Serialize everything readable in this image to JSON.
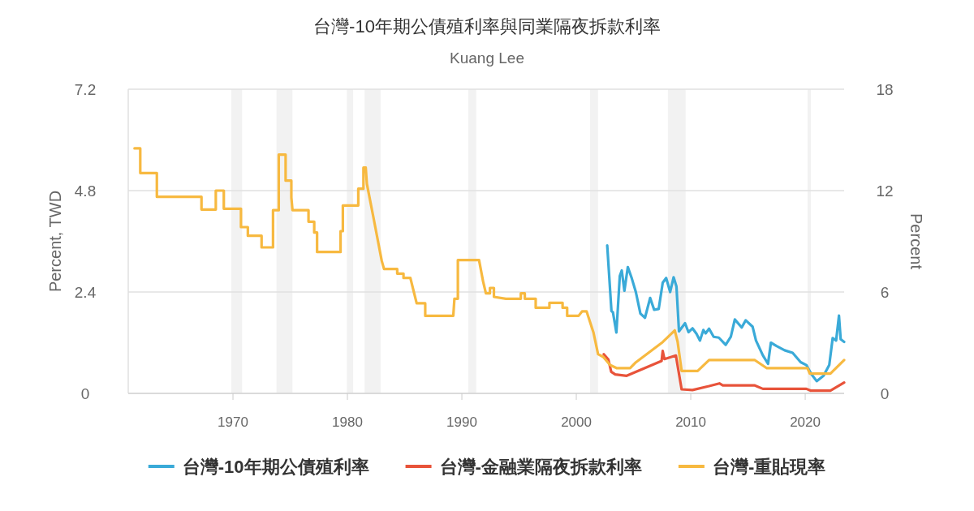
{
  "chart_data": {
    "type": "line",
    "title": "台灣-10年期公債殖利率與同業隔夜拆款利率",
    "subtitle": "Kuang Lee",
    "ylabel": "Percent, TWD",
    "y2label": "Percent",
    "xlim": [
      1960.85,
      2023.4
    ],
    "xticks": [
      1970,
      1980,
      1990,
      2000,
      2010,
      2020
    ],
    "ylim": [
      0,
      7.2
    ],
    "yticks": [
      0,
      2.4,
      4.8,
      7.2
    ],
    "y2lim": [
      0,
      18
    ],
    "y2ticks": [
      0,
      6,
      12,
      18
    ],
    "grid": "y",
    "legend": "bottom",
    "line_style": "solid",
    "bands": [
      {
        "axis": "x",
        "from": 1969.86,
        "to": 1970.8,
        "color": "#f2f2f2"
      },
      {
        "axis": "x",
        "from": 1973.8,
        "to": 1975.2,
        "color": "#f2f2f2"
      },
      {
        "axis": "x",
        "from": 1979.95,
        "to": 1980.5,
        "color": "#f2f2f2"
      },
      {
        "axis": "x",
        "from": 1981.5,
        "to": 1982.9,
        "color": "#f2f2f2"
      },
      {
        "axis": "x",
        "from": 1990.55,
        "to": 1991.25,
        "color": "#f2f2f2"
      },
      {
        "axis": "x",
        "from": 2001.2,
        "to": 2001.9,
        "color": "#f2f2f2"
      },
      {
        "axis": "x",
        "from": 2008.0,
        "to": 2009.55,
        "color": "#f2f2f2"
      },
      {
        "axis": "x",
        "from": 2020.2,
        "to": 2020.5,
        "color": "#f2f2f2"
      }
    ],
    "series": [
      {
        "name": "台灣-10年期公債殖利率",
        "color": "#3aaad8",
        "x": [
          2002.7,
          2003.07,
          2003.2,
          2003.5,
          2003.8,
          2003.97,
          2004.2,
          2004.5,
          2004.85,
          2005.2,
          2005.6,
          2006.0,
          2006.45,
          2006.8,
          2007.2,
          2007.55,
          2007.85,
          2008.2,
          2008.5,
          2008.75,
          2008.97,
          2009.5,
          2009.8,
          2010.15,
          2010.5,
          2010.8,
          2011.1,
          2011.3,
          2011.6,
          2012.0,
          2012.45,
          2013.05,
          2013.5,
          2013.85,
          2014.45,
          2014.8,
          2015.4,
          2015.7,
          2016.3,
          2016.75,
          2017.0,
          2017.5,
          2018.2,
          2018.9,
          2019.6,
          2020.1,
          2020.55,
          2021.0,
          2021.6,
          2022.1,
          2022.4,
          2022.7,
          2022.95,
          2023.1,
          2023.4
        ],
        "values": [
          3.5,
          1.95,
          1.92,
          1.44,
          2.78,
          2.91,
          2.43,
          2.99,
          2.72,
          2.4,
          1.89,
          1.79,
          2.26,
          1.98,
          2.0,
          2.62,
          2.73,
          2.4,
          2.75,
          2.53,
          1.47,
          1.66,
          1.45,
          1.54,
          1.41,
          1.25,
          1.5,
          1.42,
          1.53,
          1.34,
          1.32,
          1.15,
          1.34,
          1.75,
          1.56,
          1.73,
          1.58,
          1.25,
          0.9,
          0.7,
          1.2,
          1.12,
          1.02,
          0.96,
          0.74,
          0.67,
          0.45,
          0.29,
          0.42,
          0.67,
          1.31,
          1.25,
          1.84,
          1.28,
          1.22
        ]
      },
      {
        "name": "台灣-金融業隔夜拆款利率",
        "color": "#e8533a",
        "axis": "y2",
        "x": [
          2002.4,
          2002.8,
          2003.05,
          2003.4,
          2004.4,
          2007.45,
          2007.55,
          2007.7,
          2008.7,
          2009.2,
          2010.15,
          2011.6,
          2012.5,
          2012.8,
          2015.6,
          2016.3,
          2020.1,
          2020.5,
          2022.2,
          2023.4
        ],
        "values": [
          2.32,
          2.0,
          1.28,
          1.12,
          1.04,
          1.92,
          2.51,
          2.03,
          2.24,
          0.24,
          0.2,
          0.43,
          0.59,
          0.47,
          0.47,
          0.27,
          0.27,
          0.16,
          0.16,
          0.64
        ]
      },
      {
        "name": "台灣-重貼現率",
        "color": "#f7b940",
        "axis": "y2",
        "x": [
          1961.4,
          1961.9,
          1961.9,
          1963.35,
          1963.35,
          1967.25,
          1967.25,
          1968.5,
          1968.5,
          1969.2,
          1969.2,
          1970.7,
          1970.7,
          1971.3,
          1971.3,
          1972.5,
          1972.5,
          1973.5,
          1973.5,
          1974.0,
          1974.0,
          1974.6,
          1974.6,
          1975.1,
          1975.1,
          1975.2,
          1976.6,
          1976.6,
          1977.1,
          1977.1,
          1977.35,
          1977.35,
          1979.4,
          1979.4,
          1979.6,
          1979.6,
          1980.95,
          1980.95,
          1981.4,
          1981.4,
          1981.6,
          1981.7,
          1982.3,
          1983.0,
          1983.2,
          1984.35,
          1984.35,
          1984.9,
          1984.9,
          1985.5,
          1986.05,
          1986.8,
          1986.8,
          1989.25,
          1989.35,
          1989.65,
          1989.65,
          1991.5,
          1991.85,
          1992.1,
          1992.45,
          1992.45,
          1992.8,
          1992.8,
          1993.85,
          1995.15,
          1995.15,
          1995.5,
          1995.5,
          1996.45,
          1996.45,
          1997.65,
          1997.65,
          1998.8,
          1998.8,
          1999.2,
          1999.2,
          2000.2,
          2000.5,
          2000.9,
          2001.5,
          2001.9,
          2002.35,
          2002.95,
          2003.55,
          2004.7,
          2005.2,
          2007.55,
          2008.6,
          2008.85,
          2009.2,
          2010.6,
          2011.6,
          2015.6,
          2016.65,
          2020.2,
          2020.4,
          2022.2,
          2023.4
        ],
        "values": [
          14.5,
          14.5,
          13.04,
          13.04,
          11.63,
          11.63,
          10.88,
          10.88,
          12.0,
          12.0,
          10.93,
          10.93,
          9.84,
          9.84,
          9.33,
          9.33,
          8.64,
          8.64,
          10.84,
          10.84,
          14.13,
          14.13,
          12.59,
          12.59,
          11.6,
          10.84,
          10.84,
          10.16,
          10.16,
          9.52,
          9.52,
          8.37,
          8.37,
          9.6,
          9.6,
          11.12,
          11.12,
          12.11,
          12.11,
          13.36,
          13.36,
          12.4,
          10.32,
          7.84,
          7.36,
          7.36,
          7.09,
          7.09,
          6.83,
          6.83,
          5.33,
          5.33,
          4.59,
          4.59,
          5.6,
          5.6,
          7.89,
          7.89,
          6.64,
          5.92,
          5.92,
          6.24,
          6.24,
          5.71,
          5.6,
          5.6,
          5.92,
          5.92,
          5.6,
          5.6,
          5.07,
          5.07,
          5.36,
          5.36,
          5.07,
          5.07,
          4.59,
          4.59,
          4.85,
          4.85,
          3.6,
          2.32,
          2.16,
          1.68,
          1.49,
          1.49,
          1.84,
          3.04,
          3.73,
          3.06,
          1.33,
          1.33,
          1.97,
          1.97,
          1.49,
          1.49,
          1.17,
          1.17,
          1.97
        ]
      }
    ]
  }
}
